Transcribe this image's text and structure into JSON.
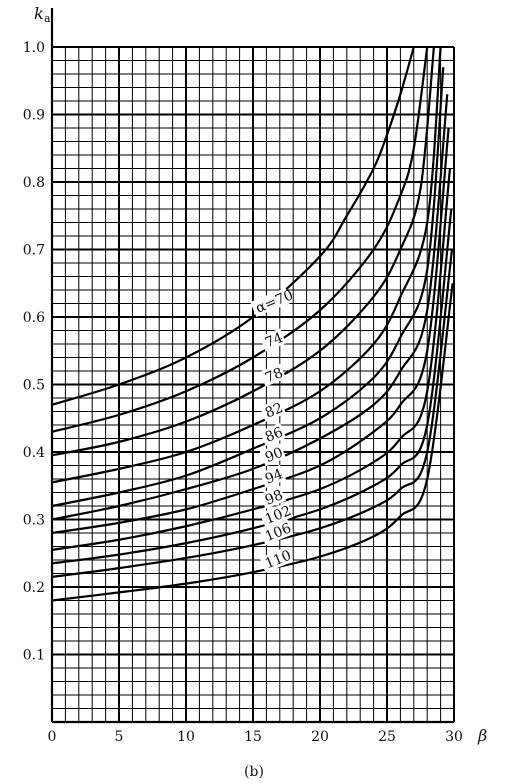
{
  "chart_data": {
    "type": "line",
    "title": "",
    "caption": "(b)",
    "xlabel": "β",
    "ylabel": "k",
    "ylabel_sub": "a",
    "xlim": [
      0,
      30
    ],
    "ylim": [
      0,
      1.0
    ],
    "x_ticks": [
      "0",
      "5",
      "10",
      "15",
      "20",
      "25",
      "30"
    ],
    "y_ticks": [
      "0.1",
      "0.2",
      "0.3",
      "0.4",
      "0.5",
      "0.6",
      "0.7",
      "0.8",
      "0.9",
      "1.0"
    ],
    "grid": true,
    "series": [
      {
        "label": "α=70",
        "x": [
          0,
          5,
          10,
          15,
          20,
          22,
          24,
          25,
          26,
          27
        ],
        "y": [
          0.47,
          0.5,
          0.54,
          0.6,
          0.69,
          0.75,
          0.82,
          0.87,
          0.93,
          1.0
        ]
      },
      {
        "label": "74",
        "x": [
          0,
          5,
          10,
          15,
          20,
          24,
          26,
          27,
          28
        ],
        "y": [
          0.43,
          0.455,
          0.49,
          0.54,
          0.61,
          0.7,
          0.78,
          0.85,
          1.0
        ]
      },
      {
        "label": "78",
        "x": [
          0,
          5,
          10,
          15,
          20,
          24,
          26,
          27.5,
          28.5
        ],
        "y": [
          0.395,
          0.415,
          0.445,
          0.49,
          0.55,
          0.63,
          0.7,
          0.79,
          1.0
        ]
      },
      {
        "label": "82",
        "x": [
          0,
          5,
          10,
          15,
          20,
          24,
          26,
          28,
          29
        ],
        "y": [
          0.355,
          0.375,
          0.4,
          0.44,
          0.49,
          0.56,
          0.63,
          0.74,
          1.0
        ]
      },
      {
        "label": "86",
        "x": [
          0,
          5,
          10,
          15,
          20,
          24,
          26,
          28,
          29.2
        ],
        "y": [
          0.32,
          0.34,
          0.365,
          0.405,
          0.45,
          0.51,
          0.57,
          0.67,
          0.97
        ]
      },
      {
        "label": "90",
        "x": [
          0,
          5,
          10,
          15,
          20,
          24,
          26,
          28,
          29.5
        ],
        "y": [
          0.3,
          0.32,
          0.345,
          0.375,
          0.42,
          0.47,
          0.52,
          0.61,
          0.93
        ]
      },
      {
        "label": "94",
        "x": [
          0,
          5,
          10,
          15,
          20,
          24,
          26,
          28,
          29.6
        ],
        "y": [
          0.28,
          0.295,
          0.315,
          0.345,
          0.38,
          0.43,
          0.47,
          0.55,
          0.88
        ]
      },
      {
        "label": "98",
        "x": [
          0,
          5,
          10,
          15,
          20,
          24,
          26,
          28,
          29.7
        ],
        "y": [
          0.255,
          0.27,
          0.29,
          0.315,
          0.345,
          0.385,
          0.42,
          0.49,
          0.82
        ]
      },
      {
        "label": "102",
        "x": [
          0,
          5,
          10,
          15,
          20,
          24,
          26,
          28,
          29.8
        ],
        "y": [
          0.235,
          0.248,
          0.265,
          0.287,
          0.315,
          0.35,
          0.38,
          0.44,
          0.76
        ]
      },
      {
        "label": "106",
        "x": [
          0,
          5,
          10,
          15,
          20,
          24,
          26,
          28,
          29.85
        ],
        "y": [
          0.215,
          0.228,
          0.243,
          0.262,
          0.287,
          0.318,
          0.345,
          0.4,
          0.7
        ]
      },
      {
        "label": "110",
        "x": [
          0,
          5,
          10,
          15,
          20,
          24,
          26,
          28,
          29.9
        ],
        "y": [
          0.18,
          0.192,
          0.205,
          0.222,
          0.245,
          0.275,
          0.305,
          0.36,
          0.65
        ]
      }
    ]
  }
}
